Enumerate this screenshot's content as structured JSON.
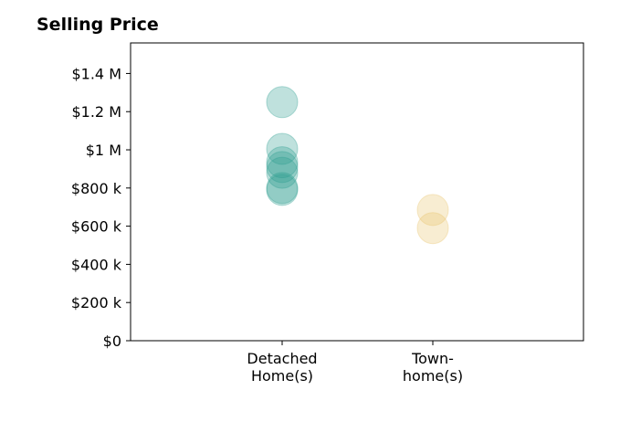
{
  "chart_data": {
    "type": "scatter",
    "title": "Selling Price",
    "categories": [
      "Detached\nHome(s)",
      "Town-\nhome(s)"
    ],
    "y_ticks": [
      {
        "value": 0,
        "label": "$0"
      },
      {
        "value": 200000,
        "label": "$200 k"
      },
      {
        "value": 400000,
        "label": "$400 k"
      },
      {
        "value": 600000,
        "label": "$600 k"
      },
      {
        "value": 800000,
        "label": "$800 k"
      },
      {
        "value": 1000000,
        "label": "$1 M"
      },
      {
        "value": 1200000,
        "label": "$1.2 M"
      },
      {
        "value": 1400000,
        "label": "$1.4 M"
      }
    ],
    "ylim": [
      0,
      1560000
    ],
    "grid": false,
    "series": [
      {
        "category": "Detached\nHome(s)",
        "color": "#2a9d8f",
        "values": [
          1250000,
          1005000,
          935000,
          910000,
          880000,
          800000,
          790000
        ]
      },
      {
        "category": "Town-\nhome(s)",
        "color": "#e9c46a",
        "values": [
          685000,
          590000
        ]
      }
    ]
  }
}
